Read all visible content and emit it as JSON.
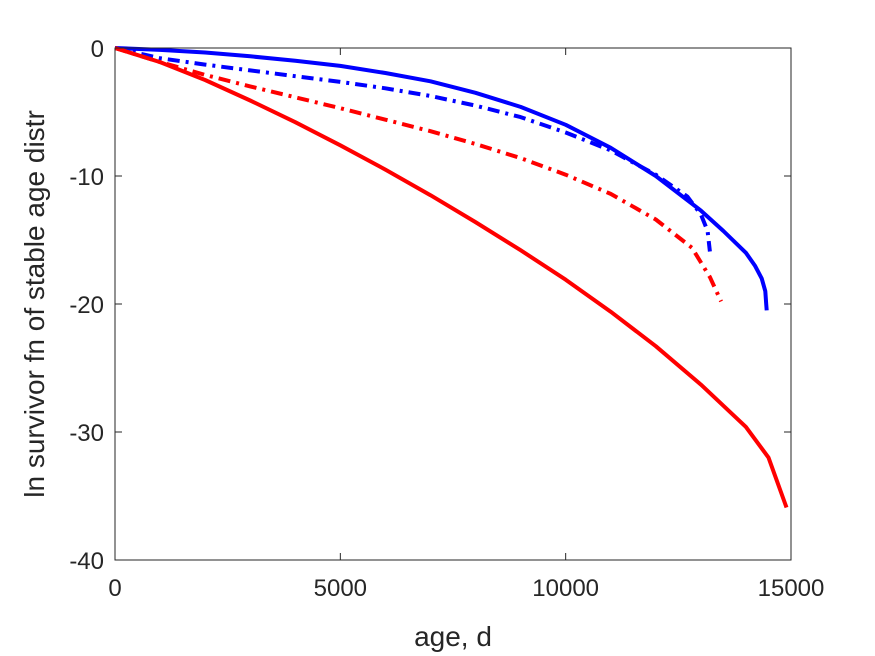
{
  "chart_data": {
    "type": "line",
    "xlabel": "age, d",
    "ylabel": "ln survivor fn of stable age distr",
    "xlim": [
      0,
      15000
    ],
    "ylim": [
      -40,
      0
    ],
    "xticks": [
      0,
      5000,
      10000,
      15000
    ],
    "yticks": [
      0,
      -10,
      -20,
      -30,
      -40
    ],
    "grid": false,
    "legend": "none",
    "series": [
      {
        "color": "#0000ff",
        "style": "solid",
        "x": [
          0,
          1000,
          2000,
          3000,
          4000,
          5000,
          6000,
          7000,
          8000,
          9000,
          10000,
          11000,
          12000,
          13000,
          13500,
          14000,
          14200,
          14350,
          14430,
          14450,
          14460
        ],
        "y": [
          0,
          -0.15,
          -0.35,
          -0.65,
          -1.0,
          -1.4,
          -1.95,
          -2.6,
          -3.5,
          -4.6,
          -6.0,
          -7.8,
          -10.0,
          -12.7,
          -14.3,
          -16.0,
          -17.0,
          -18.0,
          -19.0,
          -20.0,
          -20.5
        ]
      },
      {
        "color": "#0000ff",
        "style": "dashdot",
        "x": [
          0,
          1000,
          2000,
          3000,
          4000,
          5000,
          6000,
          7000,
          8000,
          9000,
          10000,
          11000,
          12000,
          12700,
          13000,
          13150,
          13200
        ],
        "y": [
          0,
          -0.8,
          -1.3,
          -1.75,
          -2.2,
          -2.65,
          -3.15,
          -3.75,
          -4.5,
          -5.4,
          -6.6,
          -8.0,
          -9.9,
          -11.6,
          -13.0,
          -14.3,
          -15.9
        ]
      },
      {
        "color": "#ff0000",
        "style": "dashdot",
        "x": [
          0,
          1000,
          2000,
          3000,
          4000,
          5000,
          6000,
          7000,
          8000,
          9000,
          10000,
          11000,
          12000,
          12800,
          13200,
          13450
        ],
        "y": [
          0,
          -1.1,
          -2.1,
          -3.0,
          -3.85,
          -4.7,
          -5.6,
          -6.5,
          -7.5,
          -8.6,
          -9.9,
          -11.4,
          -13.4,
          -15.6,
          -17.9,
          -19.8
        ]
      },
      {
        "color": "#ff0000",
        "style": "solid",
        "x": [
          0,
          1000,
          2000,
          3000,
          4000,
          5000,
          6000,
          7000,
          8000,
          9000,
          10000,
          11000,
          12000,
          13000,
          14000,
          14500,
          14900
        ],
        "y": [
          0,
          -1.1,
          -2.5,
          -4.1,
          -5.8,
          -7.6,
          -9.5,
          -11.5,
          -13.6,
          -15.8,
          -18.1,
          -20.6,
          -23.3,
          -26.3,
          -29.6,
          -32.0,
          -35.9
        ]
      }
    ]
  }
}
